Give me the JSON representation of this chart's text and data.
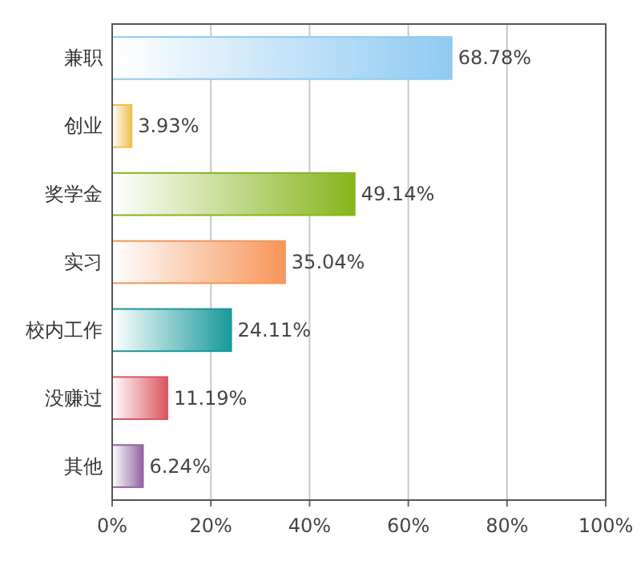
{
  "chart_data": {
    "type": "bar",
    "orientation": "horizontal",
    "categories": [
      "兼职",
      "创业",
      "奖学金",
      "实习",
      "校内工作",
      "没赚过",
      "其他"
    ],
    "values": [
      68.78,
      3.93,
      49.14,
      35.04,
      24.11,
      11.19,
      6.24
    ],
    "value_labels": [
      "68.78%",
      "3.93%",
      "49.14%",
      "35.04%",
      "24.11%",
      "11.19%",
      "6.24%"
    ],
    "colors": [
      "#8fcaf2",
      "#eec04a",
      "#86b51c",
      "#f79558",
      "#17999a",
      "#dc5560",
      "#93659f"
    ],
    "xlim": [
      0,
      100
    ],
    "xticks": [
      {
        "value": 0,
        "label": "0%"
      },
      {
        "value": 20,
        "label": "20%"
      },
      {
        "value": 40,
        "label": "40%"
      },
      {
        "value": 60,
        "label": "60%"
      },
      {
        "value": 80,
        "label": "80%"
      },
      {
        "value": 100,
        "label": "100%"
      }
    ],
    "grid": "x"
  }
}
